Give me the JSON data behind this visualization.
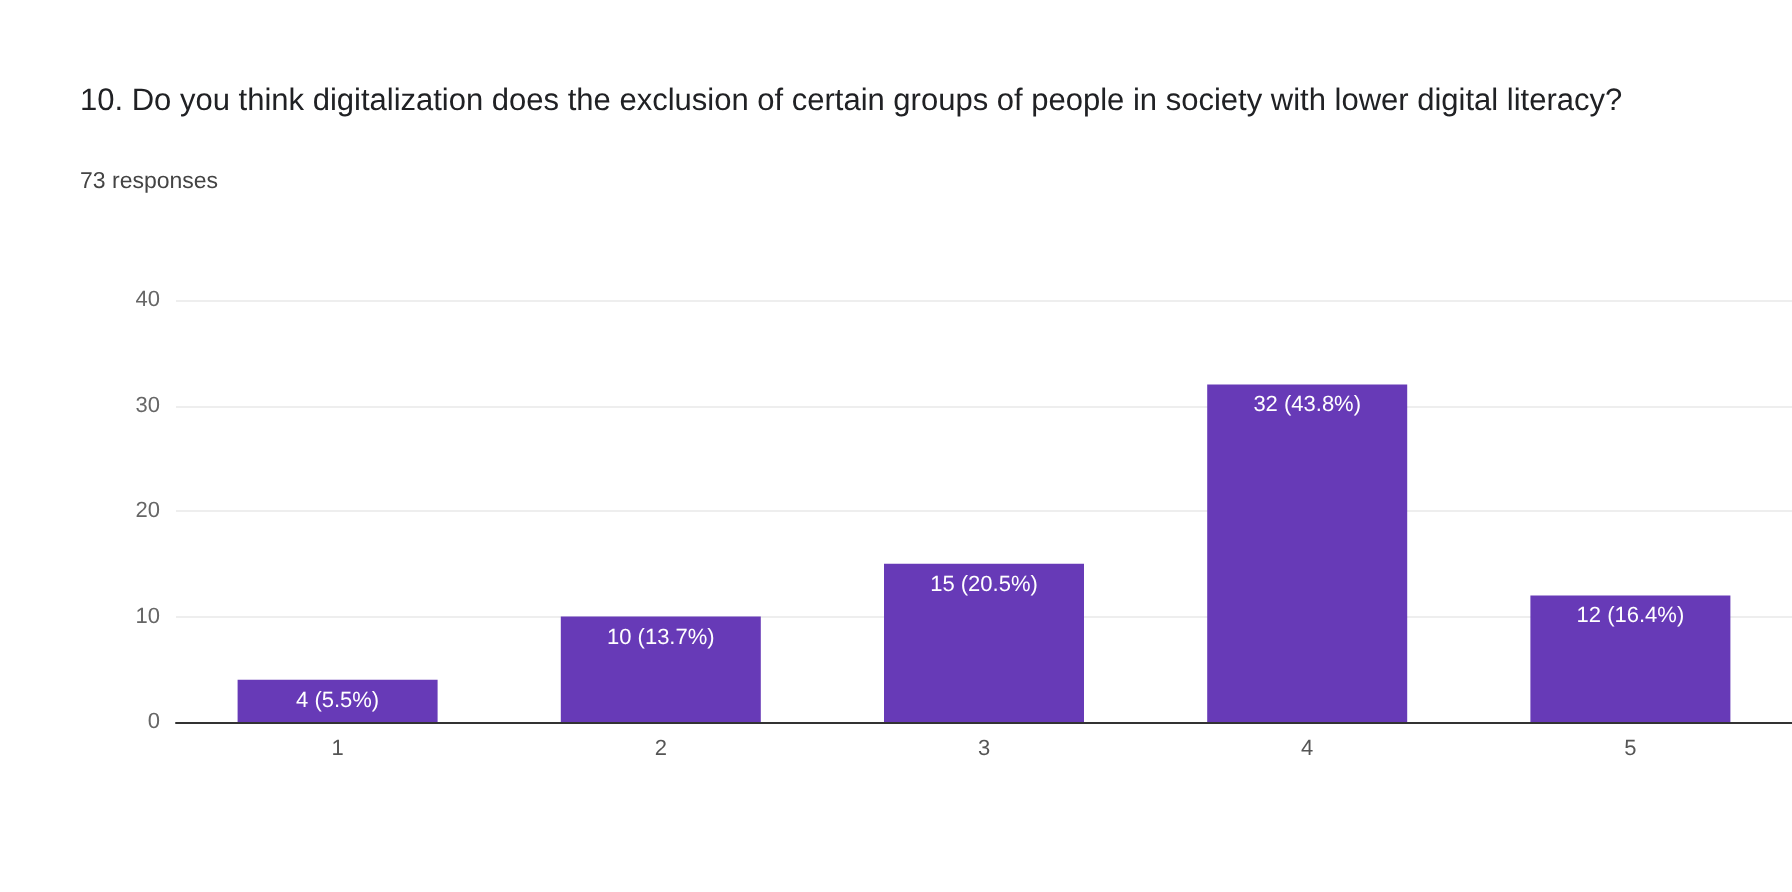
{
  "chart_data": {
    "type": "bar",
    "title": "10. Do you think digitalization does the exclusion of certain groups of people in society with lower digital literacy?",
    "subtitle": "73 responses",
    "categories": [
      "1",
      "2",
      "3",
      "4",
      "5"
    ],
    "values": [
      4,
      10,
      15,
      32,
      12
    ],
    "value_labels": [
      "4 (5.5%)",
      "10 (13.7%)",
      "15 (20.5%)",
      "32 (43.8%)",
      "12 (16.4%)"
    ],
    "color": "#673ab7",
    "ylim": [
      0,
      40
    ],
    "yticks": [
      0,
      10,
      20,
      30,
      40
    ],
    "grid": "y"
  }
}
